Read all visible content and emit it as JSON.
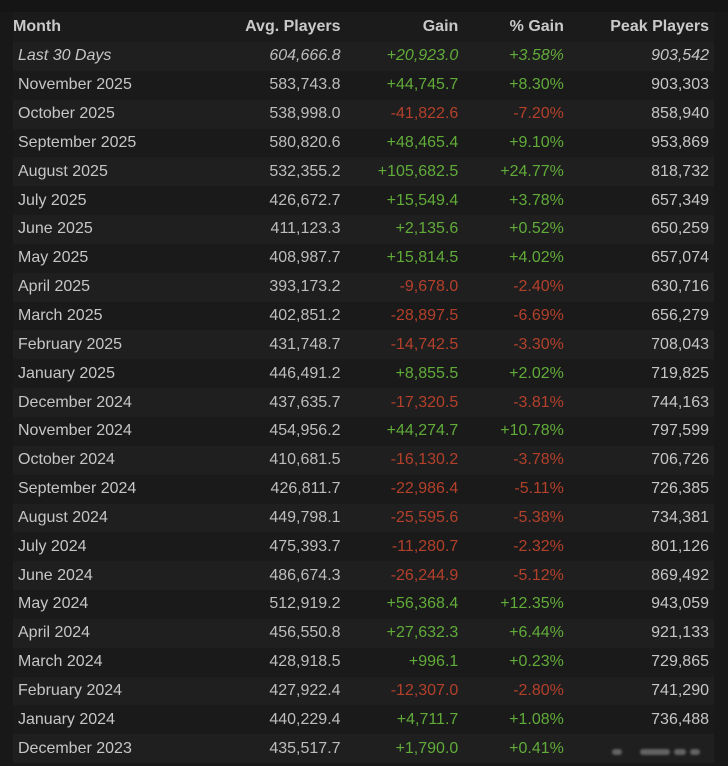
{
  "table": {
    "headers": {
      "month": "Month",
      "avg_players": "Avg. Players",
      "gain": "Gain",
      "pct_gain": "% Gain",
      "peak_players": "Peak Players"
    },
    "rows": [
      {
        "month": "Last 30 Days",
        "avg": "604,666.8",
        "gain": "+20,923.0",
        "pct": "+3.58%",
        "peak": "903,542",
        "trend": "pos",
        "italic": true
      },
      {
        "month": "November 2025",
        "avg": "583,743.8",
        "gain": "+44,745.7",
        "pct": "+8.30%",
        "peak": "903,303",
        "trend": "pos"
      },
      {
        "month": "October 2025",
        "avg": "538,998.0",
        "gain": "-41,822.6",
        "pct": "-7.20%",
        "peak": "858,940",
        "trend": "neg"
      },
      {
        "month": "September 2025",
        "avg": "580,820.6",
        "gain": "+48,465.4",
        "pct": "+9.10%",
        "peak": "953,869",
        "trend": "pos"
      },
      {
        "month": "August 2025",
        "avg": "532,355.2",
        "gain": "+105,682.5",
        "pct": "+24.77%",
        "peak": "818,732",
        "trend": "pos"
      },
      {
        "month": "July 2025",
        "avg": "426,672.7",
        "gain": "+15,549.4",
        "pct": "+3.78%",
        "peak": "657,349",
        "trend": "pos"
      },
      {
        "month": "June 2025",
        "avg": "411,123.3",
        "gain": "+2,135.6",
        "pct": "+0.52%",
        "peak": "650,259",
        "trend": "pos"
      },
      {
        "month": "May 2025",
        "avg": "408,987.7",
        "gain": "+15,814.5",
        "pct": "+4.02%",
        "peak": "657,074",
        "trend": "pos"
      },
      {
        "month": "April 2025",
        "avg": "393,173.2",
        "gain": "-9,678.0",
        "pct": "-2.40%",
        "peak": "630,716",
        "trend": "neg"
      },
      {
        "month": "March 2025",
        "avg": "402,851.2",
        "gain": "-28,897.5",
        "pct": "-6.69%",
        "peak": "656,279",
        "trend": "neg"
      },
      {
        "month": "February 2025",
        "avg": "431,748.7",
        "gain": "-14,742.5",
        "pct": "-3.30%",
        "peak": "708,043",
        "trend": "neg"
      },
      {
        "month": "January 2025",
        "avg": "446,491.2",
        "gain": "+8,855.5",
        "pct": "+2.02%",
        "peak": "719,825",
        "trend": "pos"
      },
      {
        "month": "December 2024",
        "avg": "437,635.7",
        "gain": "-17,320.5",
        "pct": "-3.81%",
        "peak": "744,163",
        "trend": "neg"
      },
      {
        "month": "November 2024",
        "avg": "454,956.2",
        "gain": "+44,274.7",
        "pct": "+10.78%",
        "peak": "797,599",
        "trend": "pos"
      },
      {
        "month": "October 2024",
        "avg": "410,681.5",
        "gain": "-16,130.2",
        "pct": "-3.78%",
        "peak": "706,726",
        "trend": "neg"
      },
      {
        "month": "September 2024",
        "avg": "426,811.7",
        "gain": "-22,986.4",
        "pct": "-5.11%",
        "peak": "726,385",
        "trend": "neg"
      },
      {
        "month": "August 2024",
        "avg": "449,798.1",
        "gain": "-25,595.6",
        "pct": "-5.38%",
        "peak": "734,381",
        "trend": "neg"
      },
      {
        "month": "July 2024",
        "avg": "475,393.7",
        "gain": "-11,280.7",
        "pct": "-2.32%",
        "peak": "801,126",
        "trend": "neg"
      },
      {
        "month": "June 2024",
        "avg": "486,674.3",
        "gain": "-26,244.9",
        "pct": "-5.12%",
        "peak": "869,492",
        "trend": "neg"
      },
      {
        "month": "May 2024",
        "avg": "512,919.2",
        "gain": "+56,368.4",
        "pct": "+12.35%",
        "peak": "943,059",
        "trend": "pos"
      },
      {
        "month": "April 2024",
        "avg": "456,550.8",
        "gain": "+27,632.3",
        "pct": "+6.44%",
        "peak": "921,133",
        "trend": "pos"
      },
      {
        "month": "March 2024",
        "avg": "428,918.5",
        "gain": "+996.1",
        "pct": "+0.23%",
        "peak": "729,865",
        "trend": "pos"
      },
      {
        "month": "February 2024",
        "avg": "427,922.4",
        "gain": "-12,307.0",
        "pct": "-2.80%",
        "peak": "741,290",
        "trend": "neg"
      },
      {
        "month": "January 2024",
        "avg": "440,229.4",
        "gain": "+4,711.7",
        "pct": "+1.08%",
        "peak": "736,488",
        "trend": "pos"
      },
      {
        "month": "December 2023",
        "avg": "435,517.7",
        "gain": "+1,790.0",
        "pct": "+0.41%",
        "peak": "",
        "trend": "pos"
      }
    ]
  },
  "colors": {
    "positive": "#61ab39",
    "negative": "#b3402b",
    "background": "#1a1a1a",
    "row_stripe": "#1f1f1f",
    "text": "#c6c6c6"
  }
}
